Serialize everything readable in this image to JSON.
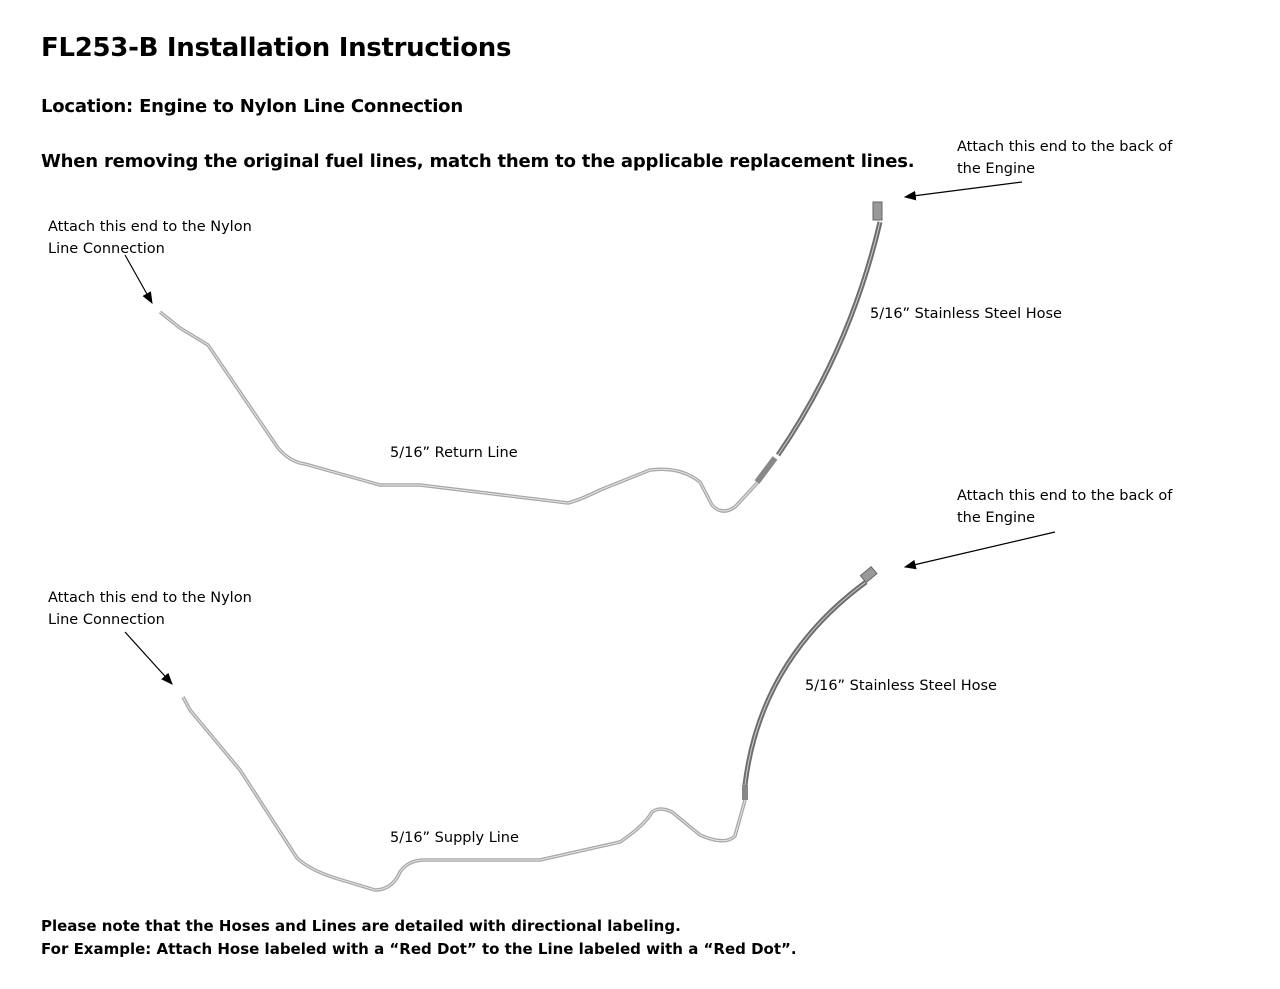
{
  "title": "FL253-B Installation Instructions",
  "location": "Location: Engine to Nylon Line Connection",
  "instruction": "When removing the original fuel lines, match them to the applicable replacement lines.",
  "return_assembly": {
    "nylon_end_label_1": "Attach this end to the Nylon",
    "nylon_end_label_2": "Line Connection",
    "engine_end_label_1": "Attach this end to the back of",
    "engine_end_label_2": "the Engine",
    "hose_label": "5/16” Stainless Steel Hose",
    "line_label": "5/16” Return Line"
  },
  "supply_assembly": {
    "nylon_end_label_1": "Attach this end to the Nylon",
    "nylon_end_label_2": "Line Connection",
    "engine_end_label_1": "Attach this end to the back of",
    "engine_end_label_2": "the Engine",
    "hose_label": "5/16” Stainless Steel Hose",
    "line_label": "5/16” Supply Line"
  },
  "footer": {
    "line1": "Please note that the Hoses and Lines are detailed with directional labeling.",
    "line2": "For Example: Attach Hose labeled with a “Red Dot” to the Line labeled with a “Red Dot”."
  },
  "colors": {
    "tube": "#a7a7a7",
    "hose": "#6e6e6e"
  }
}
